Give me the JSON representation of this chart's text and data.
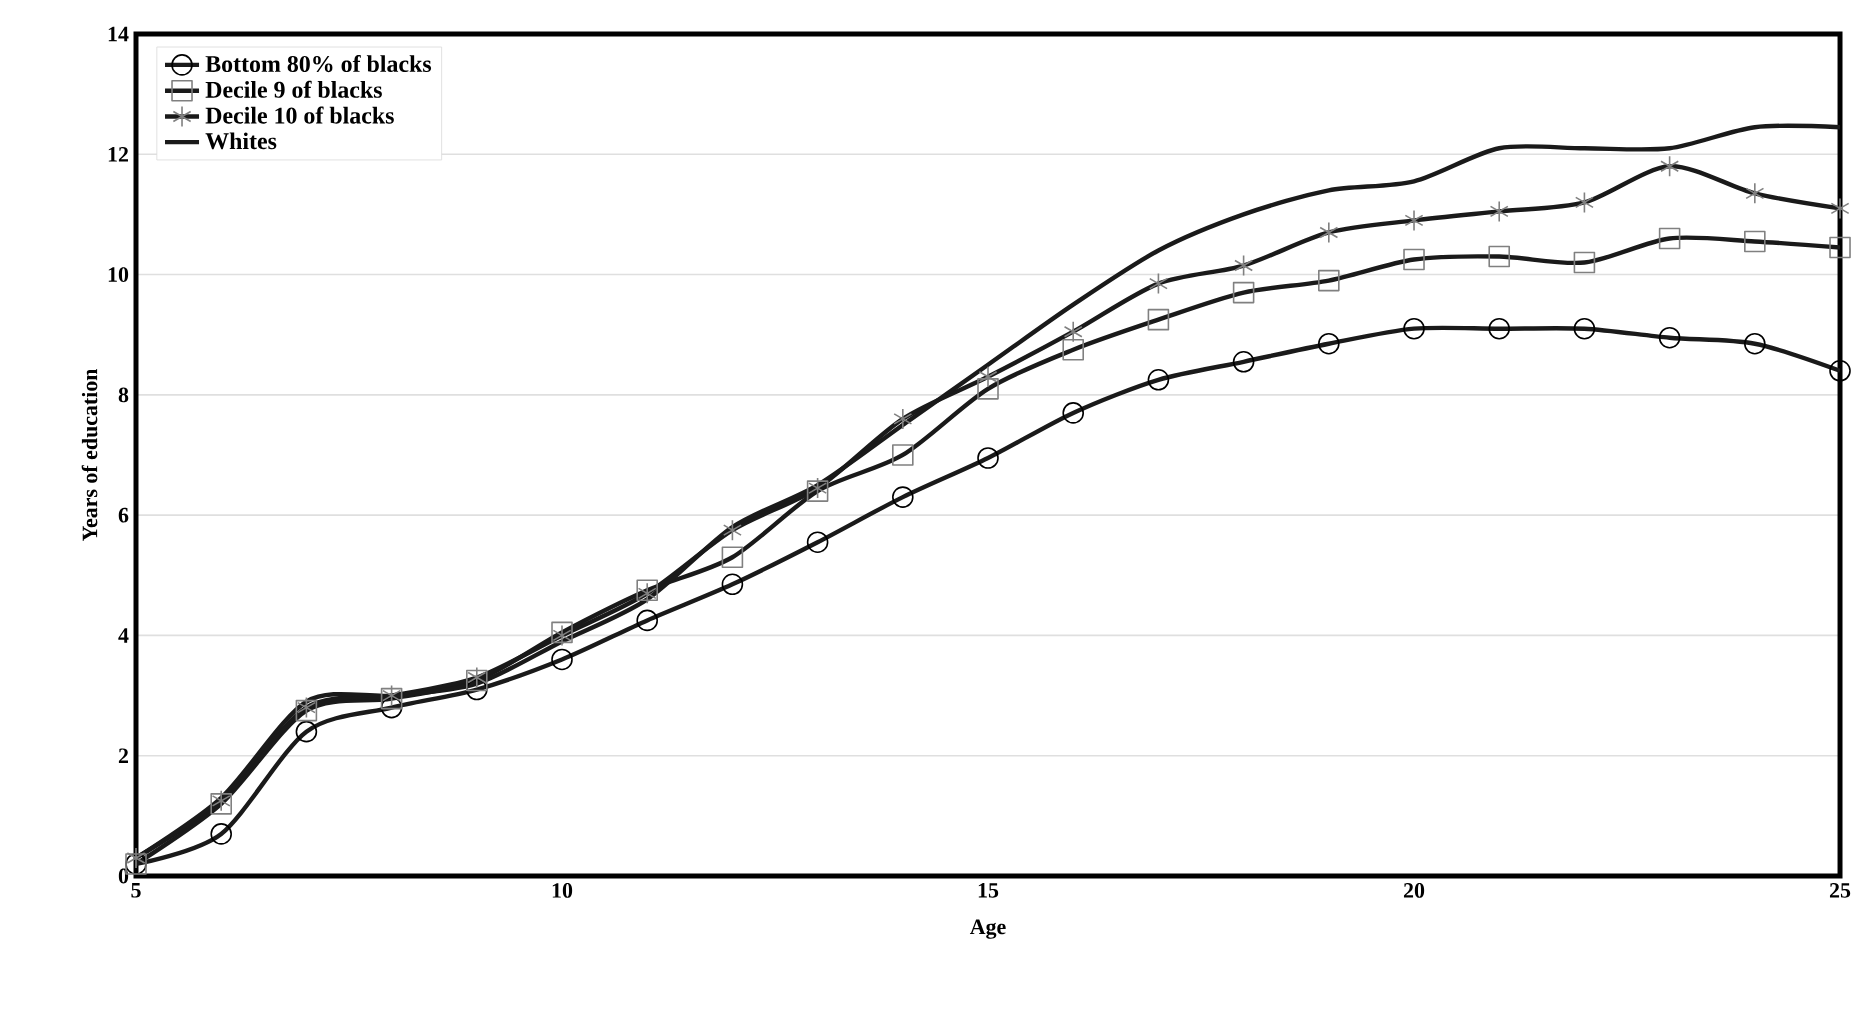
{
  "chart_data": {
    "type": "line",
    "xlabel": "Age",
    "ylabel": "Years of education",
    "x": [
      5,
      6,
      7,
      8,
      9,
      10,
      11,
      12,
      13,
      14,
      15,
      16,
      17,
      18,
      19,
      20,
      21,
      22,
      23,
      24,
      25
    ],
    "xlim": [
      5,
      25
    ],
    "xticks": [
      5,
      10,
      15,
      20,
      25
    ],
    "ylim": [
      0,
      14
    ],
    "yticks": [
      0,
      2,
      4,
      6,
      8,
      10,
      12,
      14
    ],
    "grid": "y",
    "legend": "top left",
    "series": [
      {
        "name": "Bottom 80% of blacks",
        "color": "#1a1a1a",
        "marker": "circle",
        "values": [
          0.2,
          0.7,
          2.4,
          2.8,
          3.1,
          3.6,
          4.25,
          4.85,
          5.55,
          6.3,
          6.95,
          7.7,
          8.25,
          8.55,
          8.85,
          9.1,
          9.1,
          9.1,
          8.95,
          8.85,
          8.4
        ]
      },
      {
        "name": "Decile 9 of blacks",
        "color": "#1a1a1a",
        "marker": "square",
        "values": [
          0.2,
          1.2,
          2.75,
          2.95,
          3.25,
          4.05,
          4.75,
          5.3,
          6.4,
          7.0,
          8.1,
          8.75,
          9.25,
          9.7,
          9.9,
          10.25,
          10.3,
          10.2,
          10.6,
          10.55,
          10.45
        ]
      },
      {
        "name": "Decile 10 of blacks",
        "color": "#1a1a1a",
        "marker": "cross",
        "values": [
          0.3,
          1.25,
          2.8,
          3.0,
          3.3,
          4.0,
          4.7,
          5.75,
          6.45,
          7.6,
          8.3,
          9.05,
          9.85,
          10.15,
          10.7,
          10.9,
          11.05,
          11.2,
          11.8,
          11.35,
          11.1
        ]
      },
      {
        "name": "Whites",
        "color": "#1a1a1a",
        "marker": "none",
        "values": [
          0.3,
          1.3,
          2.9,
          3.0,
          3.2,
          3.9,
          4.6,
          5.8,
          6.5,
          7.5,
          8.5,
          9.5,
          10.4,
          11.0,
          11.4,
          11.55,
          12.1,
          12.1,
          12.1,
          12.45,
          12.45
        ]
      }
    ]
  }
}
